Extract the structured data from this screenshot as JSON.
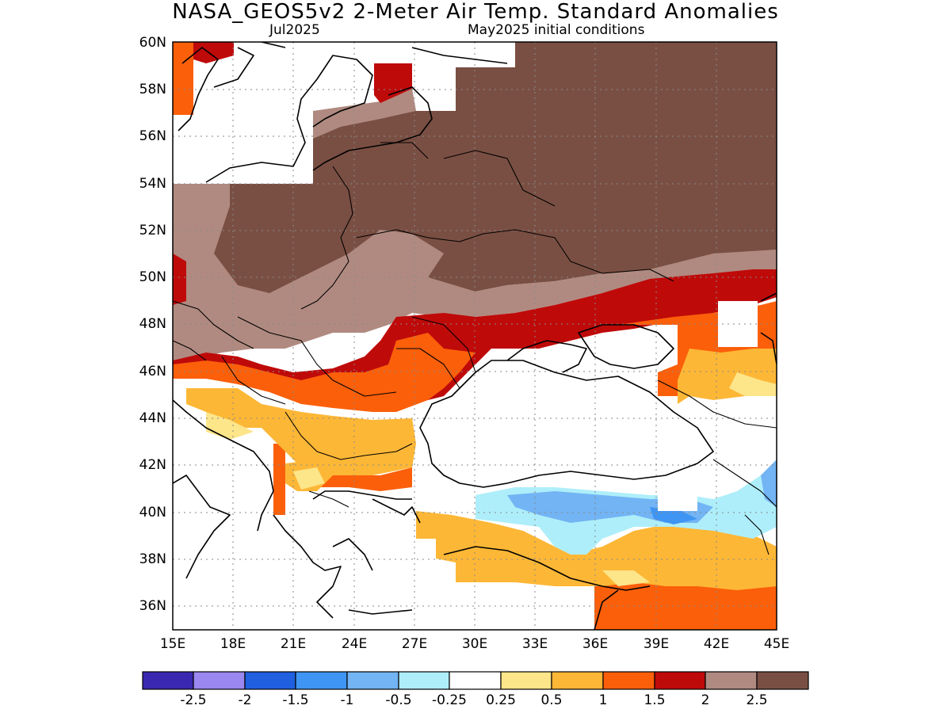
{
  "header": {
    "title": "NASA_GEOS5v2 2-Meter Air Temp. Standard Anomalies",
    "valid_month": "Jul2025",
    "init_label": "May2025 initial conditions"
  },
  "map": {
    "lon_range": [
      15,
      45
    ],
    "lat_range": [
      35,
      60
    ],
    "lat_labels": [
      "60N",
      "58N",
      "56N",
      "54N",
      "52N",
      "50N",
      "48N",
      "46N",
      "44N",
      "42N",
      "40N",
      "38N",
      "36N"
    ],
    "lon_labels": [
      "15E",
      "18E",
      "21E",
      "24E",
      "27E",
      "30E",
      "33E",
      "36E",
      "39E",
      "42E",
      "45E"
    ]
  },
  "colorbar": {
    "labels": [
      "-2.5",
      "-2",
      "-1.5",
      "-1",
      "-0.5",
      "-0.25",
      "0.25",
      "0.5",
      "1",
      "1.5",
      "2",
      "2.5"
    ],
    "colors": [
      "#3b28b0",
      "#9a87f0",
      "#1f5fe0",
      "#3f95f3",
      "#72b4f4",
      "#aeeefa",
      "#ffffff",
      "#fde58a",
      "#fdb736",
      "#fb5f0a",
      "#bf0a0a",
      "#b08a80",
      "#7a4f43"
    ]
  }
}
